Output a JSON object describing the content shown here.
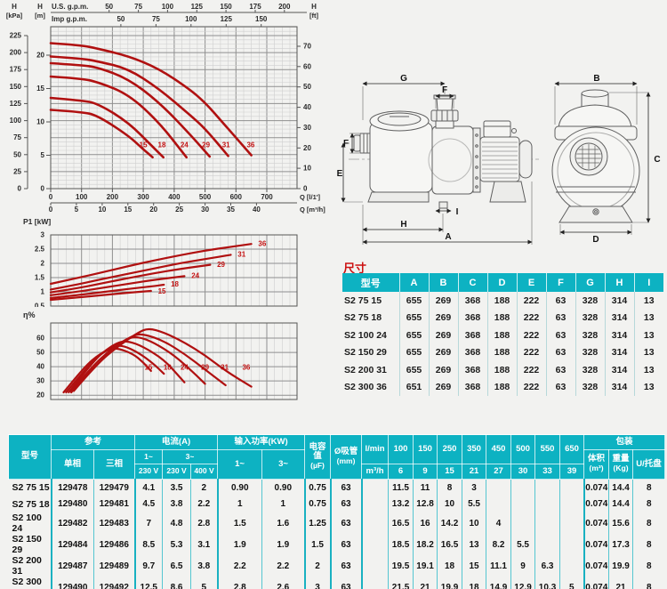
{
  "colors": {
    "accent_teal": "#0db2c2",
    "curve_red": "#b01010",
    "series_label_red": "#c41414",
    "title_red": "#cc1111",
    "page_bg": "#f2f2f0"
  },
  "drawing": {
    "labels": {
      "g": "G",
      "f": "F",
      "e": "E",
      "h": "H",
      "a": "A",
      "i": "I",
      "b": "B",
      "c": "C",
      "d": "D"
    }
  },
  "chart_data": [
    {
      "id": "hq",
      "type": "line",
      "title": "Head vs flow performance curves",
      "x_axis": {
        "us_gpm": {
          "label": "U.S. g.p.m.",
          "ticks": [
            50,
            75,
            100,
            125,
            150,
            175,
            200
          ]
        },
        "imp_gpm": {
          "label": "Imp g.p.m.",
          "ticks": [
            50,
            75,
            100,
            125,
            150
          ]
        },
        "lmin": {
          "label": "Q [l/1']",
          "ticks": [
            0,
            100,
            200,
            300,
            400,
            500,
            600,
            700
          ]
        },
        "m3h": {
          "label": "Q [m³/h]",
          "ticks": [
            0,
            5,
            10,
            15,
            20,
            25,
            30,
            35,
            40
          ]
        }
      },
      "y_axis": {
        "kpa": {
          "label": "H [kPa]",
          "ticks": [
            0,
            25,
            50,
            75,
            100,
            125,
            150,
            175,
            200,
            225
          ]
        },
        "m": {
          "label": "H [m]",
          "ticks": [
            0,
            5,
            10,
            15,
            20
          ]
        },
        "ft": {
          "label": "H [ft]",
          "ticks": [
            0,
            10,
            20,
            30,
            40,
            50,
            60,
            70
          ]
        }
      },
      "x_unit": "l/min",
      "y_unit": "m",
      "grid": true,
      "series": [
        {
          "name": "15",
          "label_at": [
            300,
            6.2
          ],
          "points": [
            [
              0,
              11.8
            ],
            [
              100,
              11.5
            ],
            [
              150,
              11
            ],
            [
              250,
              8
            ],
            [
              300,
              5.9
            ],
            [
              330,
              4.7
            ]
          ]
        },
        {
          "name": "18",
          "label_at": [
            360,
            6.2
          ],
          "points": [
            [
              0,
              13.6
            ],
            [
              100,
              13.2
            ],
            [
              150,
              12.8
            ],
            [
              250,
              10
            ],
            [
              330,
              6.3
            ],
            [
              365,
              4.7
            ]
          ]
        },
        {
          "name": "24",
          "label_at": [
            433,
            6.2
          ],
          "points": [
            [
              0,
              16.8
            ],
            [
              100,
              16.5
            ],
            [
              150,
              16
            ],
            [
              250,
              14.2
            ],
            [
              350,
              10
            ],
            [
              440,
              4.7
            ]
          ]
        },
        {
          "name": "29",
          "label_at": [
            503,
            6.2
          ],
          "points": [
            [
              0,
              18.8
            ],
            [
              100,
              18.5
            ],
            [
              150,
              18.2
            ],
            [
              250,
              16.5
            ],
            [
              350,
              13
            ],
            [
              450,
              8.2
            ],
            [
              515,
              4.8
            ]
          ]
        },
        {
          "name": "31",
          "label_at": [
            568,
            6.2
          ],
          "points": [
            [
              0,
              19.8
            ],
            [
              100,
              19.5
            ],
            [
              150,
              19.1
            ],
            [
              250,
              18
            ],
            [
              350,
              15
            ],
            [
              450,
              11.1
            ],
            [
              500,
              9
            ],
            [
              575,
              4.9
            ]
          ]
        },
        {
          "name": "36",
          "label_at": [
            648,
            6.2
          ],
          "points": [
            [
              0,
              21.8
            ],
            [
              100,
              21.5
            ],
            [
              150,
              21
            ],
            [
              250,
              19.9
            ],
            [
              350,
              18
            ],
            [
              450,
              14.9
            ],
            [
              500,
              12.9
            ],
            [
              550,
              10.3
            ],
            [
              650,
              5
            ]
          ]
        }
      ]
    },
    {
      "id": "p1",
      "type": "line",
      "title": "Input power P1 vs flow",
      "y_axis": {
        "label": "P1 [kW]",
        "ticks": [
          0.5,
          1,
          1.5,
          2,
          2.5,
          3
        ]
      },
      "x_unit": "m³/h",
      "y_unit": "kW",
      "grid": true,
      "series": [
        {
          "name": "15",
          "label_at": [
            20.5,
            1.02
          ],
          "points": [
            [
              0,
              0.72
            ],
            [
              5,
              0.8
            ],
            [
              10,
              0.88
            ],
            [
              15,
              0.97
            ],
            [
              19.5,
              1.03
            ]
          ]
        },
        {
          "name": "18",
          "label_at": [
            23,
            1.26
          ],
          "points": [
            [
              0,
              0.78
            ],
            [
              5,
              0.88
            ],
            [
              10,
              0.99
            ],
            [
              15,
              1.1
            ],
            [
              20,
              1.2
            ],
            [
              22,
              1.25
            ]
          ]
        },
        {
          "name": "24",
          "label_at": [
            27,
            1.56
          ],
          "points": [
            [
              0,
              0.88
            ],
            [
              5,
              1.0
            ],
            [
              10,
              1.14
            ],
            [
              15,
              1.28
            ],
            [
              20,
              1.42
            ],
            [
              26,
              1.55
            ]
          ]
        },
        {
          "name": "29",
          "label_at": [
            32,
            1.96
          ],
          "points": [
            [
              0,
              0.98
            ],
            [
              5,
              1.12
            ],
            [
              10,
              1.3
            ],
            [
              15,
              1.48
            ],
            [
              20,
              1.65
            ],
            [
              25,
              1.8
            ],
            [
              31,
              1.95
            ]
          ]
        },
        {
          "name": "31",
          "label_at": [
            36,
            2.31
          ],
          "points": [
            [
              0,
              1.08
            ],
            [
              5,
              1.25
            ],
            [
              10,
              1.45
            ],
            [
              15,
              1.63
            ],
            [
              20,
              1.82
            ],
            [
              25,
              2.0
            ],
            [
              30,
              2.15
            ],
            [
              35,
              2.3
            ]
          ]
        },
        {
          "name": "36",
          "label_at": [
            40,
            2.68
          ],
          "points": [
            [
              0,
              1.28
            ],
            [
              5,
              1.48
            ],
            [
              10,
              1.68
            ],
            [
              15,
              1.9
            ],
            [
              20,
              2.1
            ],
            [
              25,
              2.28
            ],
            [
              30,
              2.45
            ],
            [
              35,
              2.58
            ],
            [
              39,
              2.68
            ]
          ]
        }
      ]
    },
    {
      "id": "eta",
      "type": "line",
      "title": "Efficiency vs flow",
      "y_axis": {
        "label": "η%",
        "ticks": [
          20,
          30,
          40,
          50,
          60
        ]
      },
      "x_unit": "m³/h",
      "y_unit": "%",
      "grid": true,
      "series": [
        {
          "name": "15",
          "label_at": [
            19,
            38
          ],
          "points": [
            [
              2.5,
              22
            ],
            [
              5,
              33
            ],
            [
              8,
              45
            ],
            [
              11,
              52
            ],
            [
              13,
              53
            ],
            [
              16,
              49
            ],
            [
              18,
              43
            ],
            [
              19.5,
              37
            ]
          ]
        },
        {
          "name": "18",
          "label_at": [
            22.7,
            38
          ],
          "points": [
            [
              3,
              22
            ],
            [
              6,
              35
            ],
            [
              9,
              47
            ],
            [
              12,
              54
            ],
            [
              14,
              55
            ],
            [
              17,
              50
            ],
            [
              20,
              42
            ],
            [
              22,
              35
            ]
          ]
        },
        {
          "name": "24",
          "label_at": [
            26,
            38
          ],
          "points": [
            [
              3.5,
              22
            ],
            [
              7,
              38
            ],
            [
              10,
              50
            ],
            [
              13,
              57
            ],
            [
              15,
              58
            ],
            [
              18,
              54
            ],
            [
              22,
              45
            ],
            [
              25,
              33
            ],
            [
              26,
              29
            ]
          ]
        },
        {
          "name": "29",
          "label_at": [
            30,
            38
          ],
          "points": [
            [
              4,
              22
            ],
            [
              8,
              40
            ],
            [
              12,
              53
            ],
            [
              15,
              60
            ],
            [
              17,
              61
            ],
            [
              20,
              57
            ],
            [
              24,
              48
            ],
            [
              28,
              35
            ],
            [
              30,
              28
            ]
          ]
        },
        {
          "name": "31",
          "label_at": [
            33.8,
            38
          ],
          "points": [
            [
              4,
              23
            ],
            [
              8,
              40
            ],
            [
              12,
              53
            ],
            [
              16,
              62
            ],
            [
              18,
              63
            ],
            [
              22,
              58
            ],
            [
              26,
              49
            ],
            [
              30,
              38
            ],
            [
              34,
              27
            ]
          ]
        },
        {
          "name": "36",
          "label_at": [
            38,
            38
          ],
          "points": [
            [
              4.5,
              23
            ],
            [
              9,
              42
            ],
            [
              13,
              54
            ],
            [
              17,
              64
            ],
            [
              19,
              67
            ],
            [
              22,
              64
            ],
            [
              26,
              57
            ],
            [
              30,
              48
            ],
            [
              34,
              37
            ],
            [
              39,
              26
            ]
          ]
        }
      ]
    }
  ],
  "dim_table": {
    "title": "尺寸",
    "headers": [
      "型号",
      "A",
      "B",
      "C",
      "D",
      "E",
      "F",
      "G",
      "H",
      "I"
    ],
    "rows": [
      [
        "S2 75 15",
        "655",
        "269",
        "368",
        "188",
        "222",
        "63",
        "328",
        "314",
        "13"
      ],
      [
        "S2 75 18",
        "655",
        "269",
        "368",
        "188",
        "222",
        "63",
        "328",
        "314",
        "13"
      ],
      [
        "S2 100 24",
        "655",
        "269",
        "368",
        "188",
        "222",
        "63",
        "328",
        "314",
        "13"
      ],
      [
        "S2 150 29",
        "655",
        "269",
        "368",
        "188",
        "222",
        "63",
        "328",
        "314",
        "13"
      ],
      [
        "S2 200 31",
        "655",
        "269",
        "368",
        "188",
        "222",
        "63",
        "328",
        "314",
        "13"
      ],
      [
        "S2 300 36",
        "651",
        "269",
        "368",
        "188",
        "222",
        "63",
        "328",
        "314",
        "13"
      ]
    ]
  },
  "spec_table": {
    "header": {
      "model": "型号",
      "ref": "参考",
      "ref_single": "单相",
      "ref_three": "三相",
      "current": "电流(A)",
      "current_1ph": "1~",
      "current_3ph": "3~",
      "v230a": "230 V",
      "v230b": "230 V",
      "v400": "400 V",
      "power": "输入功率(KW)",
      "power_1ph": "1~",
      "power_3ph": "3~",
      "cap_line1": "电容",
      "cap_line2": "值",
      "cap_unit": "(µF)",
      "suction_line1": "Ø吸管",
      "suction_unit": "(mm)",
      "flow_lmin": "l/min",
      "flow_m3h": "m³/h",
      "flow_lmin_ticks": [
        "100",
        "150",
        "250",
        "350",
        "450",
        "500",
        "550",
        "650"
      ],
      "flow_m3h_ticks": [
        "6",
        "9",
        "15",
        "21",
        "27",
        "30",
        "33",
        "39"
      ],
      "packing": "包装",
      "packing_vol_l1": "体积",
      "packing_vol_l2": "(m³)",
      "packing_wt_l1": "重量",
      "packing_wt_l2": "(Kg)",
      "packing_u": "U/托盘"
    },
    "rows": [
      {
        "model": "S2 75 15",
        "single": "129478",
        "three": "129479",
        "a230_1": "4.1",
        "a230_3": "3.5",
        "a400": "2",
        "kw1": "0.90",
        "kw3": "0.90",
        "cap": "0.75",
        "suction": "63",
        "flows": [
          "11.5",
          "11",
          "8",
          "3",
          "",
          "",
          "",
          ""
        ],
        "vol": "0.074",
        "weight": "14.4",
        "pallet": "8"
      },
      {
        "model": "S2 75 18",
        "single": "129480",
        "three": "129481",
        "a230_1": "4.5",
        "a230_3": "3.8",
        "a400": "2.2",
        "kw1": "1",
        "kw3": "1",
        "cap": "0.75",
        "suction": "63",
        "flows": [
          "13.2",
          "12.8",
          "10",
          "5.5",
          "",
          "",
          "",
          ""
        ],
        "vol": "0.074",
        "weight": "14.4",
        "pallet": "8"
      },
      {
        "model": "S2 100 24",
        "single": "129482",
        "three": "129483",
        "a230_1": "7",
        "a230_3": "4.8",
        "a400": "2.8",
        "kw1": "1.5",
        "kw3": "1.6",
        "cap": "1.25",
        "suction": "63",
        "flows": [
          "16.5",
          "16",
          "14.2",
          "10",
          "4",
          "",
          "",
          ""
        ],
        "vol": "0.074",
        "weight": "15.6",
        "pallet": "8"
      },
      {
        "model": "S2 150 29",
        "single": "129484",
        "three": "129486",
        "a230_1": "8.5",
        "a230_3": "5.3",
        "a400": "3.1",
        "kw1": "1.9",
        "kw3": "1.9",
        "cap": "1.5",
        "suction": "63",
        "flows": [
          "18.5",
          "18.2",
          "16.5",
          "13",
          "8.2",
          "5.5",
          "",
          ""
        ],
        "vol": "0.074",
        "weight": "17.3",
        "pallet": "8"
      },
      {
        "model": "S2 200 31",
        "single": "129487",
        "three": "129489",
        "a230_1": "9.7",
        "a230_3": "6.5",
        "a400": "3.8",
        "kw1": "2.2",
        "kw3": "2.2",
        "cap": "2",
        "suction": "63",
        "flows": [
          "19.5",
          "19.1",
          "18",
          "15",
          "11.1",
          "9",
          "6.3",
          ""
        ],
        "vol": "0.074",
        "weight": "19.9",
        "pallet": "8"
      },
      {
        "model": "S2 300 36",
        "single": "129490",
        "three": "129492",
        "a230_1": "12.5",
        "a230_3": "8.6",
        "a400": "5",
        "kw1": "2.8",
        "kw3": "2.6",
        "cap": "3",
        "suction": "63",
        "flows": [
          "21.5",
          "21",
          "19.9",
          "18",
          "14.9",
          "12.9",
          "10.3",
          "5"
        ],
        "vol": "0.074",
        "weight": "21",
        "pallet": "8"
      }
    ]
  }
}
